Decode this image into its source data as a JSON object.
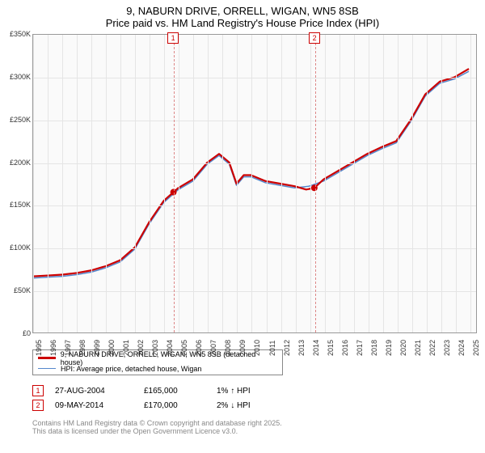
{
  "title_line1": "9, NABURN DRIVE, ORRELL, WIGAN, WN5 8SB",
  "title_line2": "Price paid vs. HM Land Registry's House Price Index (HPI)",
  "chart": {
    "type": "line",
    "background_color": "#fafafa",
    "grid_color": "#e5e5e5",
    "ylim": [
      0,
      350000
    ],
    "ytick_step": 50000,
    "ytick_labels": [
      "£0",
      "£50K",
      "£100K",
      "£150K",
      "£200K",
      "£250K",
      "£300K",
      "£350K"
    ],
    "xlim": [
      1995,
      2025.5
    ],
    "xticks": [
      1995,
      1996,
      1997,
      1998,
      1999,
      2000,
      2001,
      2002,
      2003,
      2004,
      2005,
      2006,
      2007,
      2008,
      2009,
      2010,
      2011,
      2012,
      2013,
      2014,
      2015,
      2016,
      2017,
      2018,
      2019,
      2020,
      2021,
      2022,
      2023,
      2024,
      2025
    ],
    "series": [
      {
        "name": "price_paid",
        "color": "#cc0000",
        "width": 2.2,
        "data": [
          [
            1995,
            66000
          ],
          [
            1996,
            67000
          ],
          [
            1997,
            68000
          ],
          [
            1998,
            70000
          ],
          [
            1999,
            73000
          ],
          [
            2000,
            78000
          ],
          [
            2001,
            85000
          ],
          [
            2002,
            100000
          ],
          [
            2003,
            130000
          ],
          [
            2004.0,
            155000
          ],
          [
            2004.66,
            165000
          ],
          [
            2005,
            170000
          ],
          [
            2006,
            180000
          ],
          [
            2007,
            200000
          ],
          [
            2007.8,
            210000
          ],
          [
            2008.5,
            200000
          ],
          [
            2009,
            175000
          ],
          [
            2009.5,
            185000
          ],
          [
            2010,
            185000
          ],
          [
            2011,
            178000
          ],
          [
            2012,
            175000
          ],
          [
            2013,
            172000
          ],
          [
            2013.8,
            168000
          ],
          [
            2014.36,
            170000
          ],
          [
            2015,
            180000
          ],
          [
            2016,
            190000
          ],
          [
            2017,
            200000
          ],
          [
            2018,
            210000
          ],
          [
            2019,
            218000
          ],
          [
            2020,
            225000
          ],
          [
            2021,
            250000
          ],
          [
            2022,
            280000
          ],
          [
            2023,
            295000
          ],
          [
            2024,
            300000
          ],
          [
            2025,
            310000
          ]
        ]
      },
      {
        "name": "hpi",
        "color": "#5588cc",
        "width": 1.5,
        "data": [
          [
            1995,
            64000
          ],
          [
            1996,
            65000
          ],
          [
            1997,
            66000
          ],
          [
            1998,
            68000
          ],
          [
            1999,
            71000
          ],
          [
            2000,
            76000
          ],
          [
            2001,
            83000
          ],
          [
            2002,
            98000
          ],
          [
            2003,
            128000
          ],
          [
            2004,
            153000
          ],
          [
            2005,
            168000
          ],
          [
            2006,
            178000
          ],
          [
            2007,
            198000
          ],
          [
            2007.8,
            208000
          ],
          [
            2008.5,
            198000
          ],
          [
            2009,
            173000
          ],
          [
            2009.5,
            183000
          ],
          [
            2010,
            183000
          ],
          [
            2011,
            176000
          ],
          [
            2012,
            173000
          ],
          [
            2013,
            170000
          ],
          [
            2014,
            172000
          ],
          [
            2015,
            178000
          ],
          [
            2016,
            188000
          ],
          [
            2017,
            198000
          ],
          [
            2018,
            208000
          ],
          [
            2019,
            216000
          ],
          [
            2020,
            223000
          ],
          [
            2021,
            248000
          ],
          [
            2022,
            278000
          ],
          [
            2023,
            293000
          ],
          [
            2024,
            298000
          ],
          [
            2025,
            307000
          ]
        ]
      }
    ],
    "sale_markers": [
      {
        "n": "1",
        "x": 2004.66,
        "y": 165000
      },
      {
        "n": "2",
        "x": 2014.36,
        "y": 170000
      }
    ],
    "dashed_color": "#dd8888"
  },
  "legend": {
    "items": [
      {
        "color": "#cc0000",
        "width": 2.2,
        "label": "9, NABURN DRIVE, ORRELL, WIGAN, WN5 8SB (detached house)"
      },
      {
        "color": "#5588cc",
        "width": 1.5,
        "label": "HPI: Average price, detached house, Wigan"
      }
    ]
  },
  "sales": [
    {
      "n": "1",
      "date": "27-AUG-2004",
      "price": "£165,000",
      "note": "1% ↑ HPI"
    },
    {
      "n": "2",
      "date": "09-MAY-2014",
      "price": "£170,000",
      "note": "2% ↓ HPI"
    }
  ],
  "footer_line1": "Contains HM Land Registry data © Crown copyright and database right 2025.",
  "footer_line2": "This data is licensed under the Open Government Licence v3.0."
}
